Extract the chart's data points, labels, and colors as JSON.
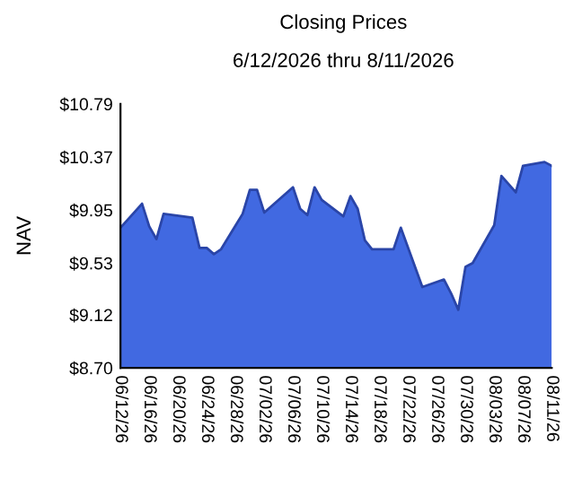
{
  "chart_data": {
    "type": "area",
    "title": "Closing Prices",
    "subtitle": "6/12/2026 thru 8/11/2026",
    "ylabel": "NAV",
    "x": [
      "2026-06-12",
      "2026-06-15",
      "2026-06-16",
      "2026-06-17",
      "2026-06-18",
      "2026-06-22",
      "2026-06-23",
      "2026-06-24",
      "2026-06-25",
      "2026-06-26",
      "2026-06-29",
      "2026-06-30",
      "2026-07-01",
      "2026-07-02",
      "2026-07-06",
      "2026-07-07",
      "2026-07-08",
      "2026-07-09",
      "2026-07-10",
      "2026-07-13",
      "2026-07-14",
      "2026-07-15",
      "2026-07-16",
      "2026-07-17",
      "2026-07-20",
      "2026-07-21",
      "2026-07-24",
      "2026-07-27",
      "2026-07-28",
      "2026-07-29",
      "2026-07-30",
      "2026-07-31",
      "2026-08-03",
      "2026-08-04",
      "2026-08-06",
      "2026-08-07",
      "2026-08-10",
      "2026-08-11"
    ],
    "series": [
      {
        "color": "#4169e1",
        "values": [
          9.81,
          10.0,
          9.82,
          9.72,
          9.92,
          9.89,
          9.65,
          9.65,
          9.6,
          9.64,
          9.92,
          10.11,
          10.11,
          9.93,
          10.13,
          9.96,
          9.91,
          10.13,
          10.03,
          9.9,
          10.06,
          9.96,
          9.71,
          9.64,
          9.64,
          9.81,
          9.34,
          9.4,
          9.29,
          9.16,
          9.5,
          9.53,
          9.83,
          10.22,
          10.09,
          10.3,
          10.33,
          10.3
        ]
      }
    ],
    "ylim": [
      8.7,
      10.79
    ],
    "yticks": [
      {
        "value": 8.7,
        "label": "$8.70"
      },
      {
        "value": 9.12,
        "label": "$9.12"
      },
      {
        "value": 9.53,
        "label": "$9.53"
      },
      {
        "value": 9.95,
        "label": "$9.95"
      },
      {
        "value": 10.37,
        "label": "$10.37"
      },
      {
        "value": 10.79,
        "label": "$10.79"
      }
    ],
    "xlim": [
      "2026-06-12",
      "2026-08-11"
    ],
    "xticks": [
      {
        "value": "2026-06-12",
        "label": "06/12/26"
      },
      {
        "value": "2026-06-16",
        "label": "06/16/26"
      },
      {
        "value": "2026-06-20",
        "label": "06/20/26"
      },
      {
        "value": "2026-06-24",
        "label": "06/24/26"
      },
      {
        "value": "2026-06-28",
        "label": "06/28/26"
      },
      {
        "value": "2026-07-02",
        "label": "07/02/26"
      },
      {
        "value": "2026-07-06",
        "label": "07/06/26"
      },
      {
        "value": "2026-07-10",
        "label": "07/10/26"
      },
      {
        "value": "2026-07-14",
        "label": "07/14/26"
      },
      {
        "value": "2026-07-18",
        "label": "07/18/26"
      },
      {
        "value": "2026-07-22",
        "label": "07/22/26"
      },
      {
        "value": "2026-07-26",
        "label": "07/26/26"
      },
      {
        "value": "2026-07-30",
        "label": "07/30/26"
      },
      {
        "value": "2026-08-03",
        "label": "08/03/26"
      },
      {
        "value": "2026-08-07",
        "label": "08/07/26"
      },
      {
        "value": "2026-08-11",
        "label": "08/11/26"
      }
    ],
    "grid": false,
    "legend": false
  }
}
